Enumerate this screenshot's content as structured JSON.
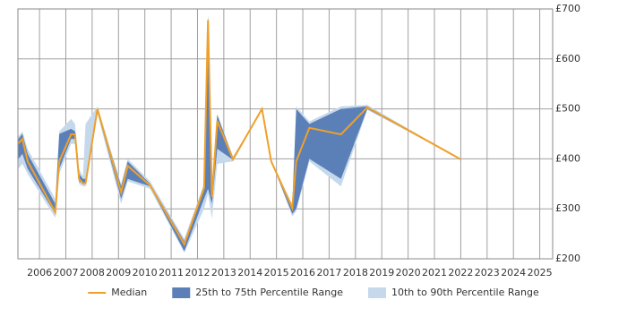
{
  "chart_data": {
    "type": "range-line",
    "x": [
      2005.2,
      2005.35,
      2005.55,
      2006.6,
      2006.75,
      2007.2,
      2007.35,
      2007.5,
      2007.65,
      2007.75,
      2008.2,
      2009.1,
      2009.35,
      2010.2,
      2011.5,
      2012.25,
      2012.4,
      2012.55,
      2012.75,
      2013.35,
      2014.45,
      2014.8,
      2015.6,
      2015.75,
      2016.25,
      2017.45,
      2018.45,
      2022.0
    ],
    "series": [
      {
        "name": "10th to 90th Percentile Range",
        "color": "#c6d9ec",
        "low": [
          380,
          390,
          370,
          282,
          370,
          430,
          430,
          350,
          345,
          345,
          490,
          310,
          355,
          340,
          212,
          300,
          330,
          280,
          390,
          395,
          500,
          395,
          285,
          295,
          395,
          345,
          498,
          399
        ],
        "high": [
          445,
          455,
          420,
          320,
          455,
          480,
          470,
          380,
          365,
          470,
          505,
          350,
          400,
          355,
          240,
          350,
          690,
          345,
          490,
          405,
          500,
          395,
          310,
          505,
          475,
          505,
          508,
          399
        ]
      },
      {
        "name": "25th to 75th Percentile Range",
        "color": "#5b80b8",
        "low": [
          400,
          410,
          380,
          290,
          380,
          440,
          440,
          355,
          350,
          350,
          495,
          320,
          360,
          345,
          215,
          320,
          340,
          310,
          420,
          398,
          500,
          395,
          290,
          300,
          400,
          360,
          500,
          399
        ],
        "high": [
          440,
          450,
          410,
          310,
          450,
          460,
          455,
          370,
          360,
          360,
          500,
          345,
          395,
          350,
          235,
          345,
          688,
          340,
          488,
          402,
          500,
          395,
          305,
          500,
          470,
          500,
          505,
          399
        ]
      },
      {
        "name": "Median",
        "color": "#f0a02a",
        "values": [
          431,
          440,
          395,
          293,
          395,
          449,
          449,
          360,
          351,
          351,
          500,
          333,
          386,
          347,
          229,
          342,
          678,
          324,
          476,
          399,
          500,
          395,
          302,
          395,
          462,
          449,
          503,
          399
        ]
      }
    ],
    "xlim": [
      2005.18,
      2025.49
    ],
    "xticks": [
      2006,
      2007,
      2008,
      2009,
      2010,
      2011,
      2012,
      2013,
      2014,
      2015,
      2016,
      2017,
      2018,
      2019,
      2020,
      2021,
      2022,
      2023,
      2024,
      2025
    ],
    "ylim": [
      200,
      700
    ],
    "yticks": [
      {
        "value": 200,
        "label": "£200"
      },
      {
        "value": 300,
        "label": "£300"
      },
      {
        "value": 400,
        "label": "£400"
      },
      {
        "value": 500,
        "label": "£500"
      },
      {
        "value": 600,
        "label": "£600"
      },
      {
        "value": 700,
        "label": "£700"
      }
    ],
    "grid": true,
    "legend": "bottom"
  }
}
